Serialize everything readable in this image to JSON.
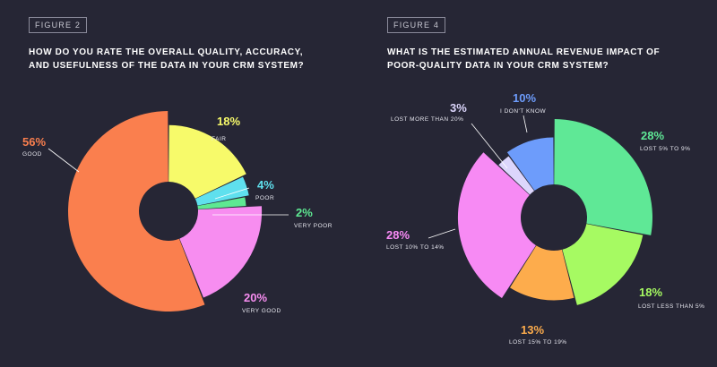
{
  "chart_data": [
    {
      "type": "pie",
      "figure_label": "FIGURE 2",
      "title": "HOW DO YOU RATE THE OVERALL QUALITY, ACCURACY, AND USEFULNESS OF THE DATA IN YOUR CRM SYSTEM?",
      "slices": [
        {
          "label": "FAIR",
          "value": 18,
          "display": "18%",
          "color": "#f7fa6a",
          "scale": 0.8
        },
        {
          "label": "POOR",
          "value": 4,
          "display": "4%",
          "color": "#5fe0ee",
          "scale": 0.74
        },
        {
          "label": "VERY POOR",
          "value": 2,
          "display": "2%",
          "color": "#5ee892",
          "scale": 0.68
        },
        {
          "label": "VERY GOOD",
          "value": 20,
          "display": "20%",
          "color": "#f78df0",
          "scale": 0.9
        },
        {
          "label": "GOOD",
          "value": 56,
          "display": "56%",
          "color": "#fa7f4e",
          "scale": 1.0
        }
      ]
    },
    {
      "type": "pie",
      "figure_label": "FIGURE 4",
      "title": "WHAT IS THE ESTIMATED ANNUAL REVENUE IMPACT OF POOR-QUALITY DATA IN YOUR CRM SYSTEM?",
      "slices": [
        {
          "label": "LOST 5% TO 9%",
          "value": 28,
          "display": "28%",
          "color": "#5fe896",
          "scale": 1.0
        },
        {
          "label": "LOST LESS THAN 5%",
          "value": 18,
          "display": "18%",
          "color": "#a6fa62",
          "scale": 0.88
        },
        {
          "label": "LOST 15% TO 19%",
          "value": 13,
          "display": "13%",
          "color": "#fdac4c",
          "scale": 0.76
        },
        {
          "label": "LOST 10% TO 14%",
          "value": 28,
          "display": "28%",
          "color": "#f78af4",
          "scale": 0.96
        },
        {
          "label": "LOST MORE THAN 20%",
          "value": 3,
          "display": "3%",
          "color": "#dcd6fc",
          "scale": 0.66
        },
        {
          "label": "I DON'T KNOW",
          "value": 10,
          "display": "10%",
          "color": "#6d9cfb",
          "scale": 0.72
        }
      ]
    }
  ]
}
